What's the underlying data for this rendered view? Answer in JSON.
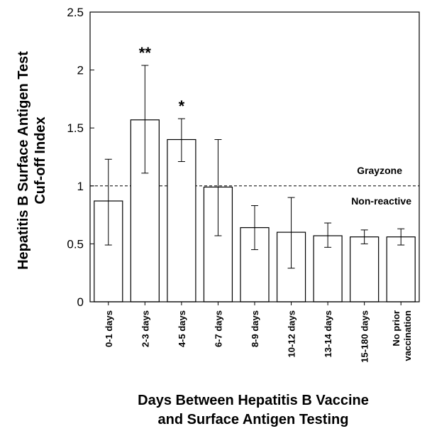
{
  "chart_data": {
    "type": "bar",
    "ylabel_line1": "Hepatitis B Surface Antigen Test",
    "ylabel_line2": "Cuf-off Index",
    "xlabel_line1": "Days Between Hepatitis B Vaccine",
    "xlabel_line2": "and Surface Antigen Testing",
    "ylim": [
      0,
      2.5
    ],
    "yticks": [
      "0",
      "0.5",
      "1",
      "1.5",
      "2",
      "2.5"
    ],
    "ytick_values": [
      0,
      0.5,
      1,
      1.5,
      2,
      2.5
    ],
    "categories": [
      "0-1 days",
      "2-3 days",
      "4-5 days",
      "6-7 days",
      "8-9 days",
      "10-12 days",
      "13-14 days",
      "15-180 days",
      "No prior vaccination"
    ],
    "values": [
      0.87,
      1.57,
      1.4,
      0.99,
      0.64,
      0.6,
      0.57,
      0.56,
      0.56
    ],
    "error_low": [
      0.49,
      1.11,
      1.21,
      0.57,
      0.45,
      0.29,
      0.47,
      0.5,
      0.49
    ],
    "error_high": [
      1.23,
      2.04,
      1.58,
      1.4,
      0.83,
      0.9,
      0.68,
      0.62,
      0.63
    ],
    "significance": [
      "",
      "**",
      "*",
      "",
      "",
      "",
      "",
      "",
      ""
    ],
    "reference_line": {
      "value": 1,
      "label_above": "Grayzone",
      "label_below": "Non-reactive"
    }
  }
}
